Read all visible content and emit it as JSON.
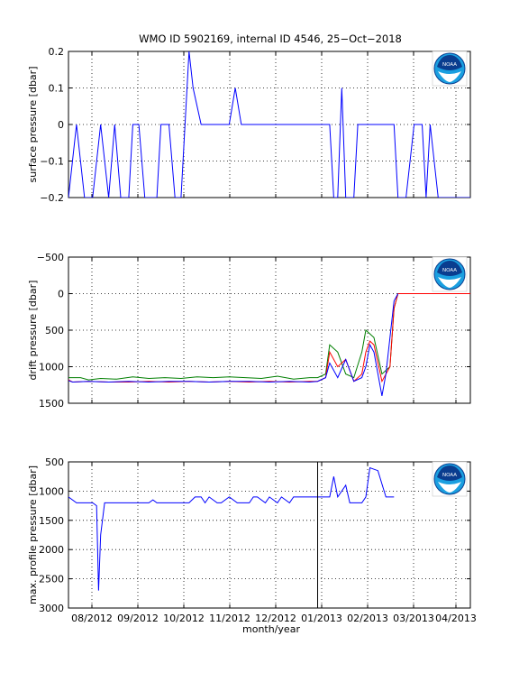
{
  "chart_data": [
    {
      "type": "line",
      "title": "WMO ID 5902169, internal ID 4546, 25−Oct−2018",
      "ylabel": "surface pressure [dbar]",
      "xlabel": "",
      "xlim": [
        0,
        100
      ],
      "ylim": [
        -0.2,
        0.2
      ],
      "yticks": [
        -0.2,
        -0.1,
        0,
        0.1,
        0.2
      ],
      "ytick_labels": [
        "−0.2",
        "−0.1",
        "0",
        "0.1",
        "0.2"
      ],
      "y_reversed": false,
      "grid": true,
      "logo": "noaa-logo",
      "series": [
        {
          "color": "#0000ff",
          "x": [
            0,
            2,
            4,
            6,
            8,
            10,
            11.5,
            13,
            15,
            16,
            17.5,
            19,
            21,
            22,
            23,
            24,
            25,
            26.5,
            28,
            30,
            31,
            33,
            35,
            37,
            38,
            39,
            40,
            41.5,
            43,
            45,
            47,
            48,
            50,
            52,
            53.5,
            55,
            57,
            59,
            61,
            63,
            65,
            66,
            67,
            68,
            69,
            70,
            71,
            72,
            74,
            75,
            76,
            77,
            79,
            81,
            82,
            84,
            86,
            87,
            88,
            89,
            90,
            92,
            94,
            96,
            98,
            100
          ],
          "y": [
            -0.2,
            0,
            -0.2,
            -0.2,
            0,
            -0.2,
            0,
            -0.2,
            -0.2,
            0,
            0,
            -0.2,
            -0.2,
            -0.2,
            0,
            0,
            0,
            -0.2,
            -0.2,
            0.2,
            0.1,
            0,
            0,
            0,
            0,
            0,
            0,
            0.1,
            0,
            0,
            0,
            0,
            0,
            0,
            0,
            0,
            0,
            0,
            0,
            0,
            0,
            -0.2,
            -0.2,
            0.1,
            -0.2,
            -0.2,
            -0.2,
            0,
            0,
            0,
            0,
            0,
            0,
            0,
            -0.2,
            -0.2,
            0,
            0,
            0,
            -0.2,
            0,
            -0.2,
            -0.2,
            -0.2,
            -0.2,
            -0.2
          ]
        }
      ],
      "vline_x": null
    },
    {
      "type": "line",
      "title": "",
      "ylabel": "drift pressure [dbar]",
      "xlabel": "",
      "xlim": [
        0,
        100
      ],
      "ylim": [
        -500,
        1500
      ],
      "yticks": [
        -500,
        0,
        500,
        1000,
        1500
      ],
      "ytick_labels": [
        "−500",
        "0",
        "500",
        "1000",
        "1500"
      ],
      "y_reversed": true,
      "grid": true,
      "logo": "noaa-logo",
      "series": [
        {
          "color": "#007f00",
          "x": [
            0,
            3,
            5,
            8,
            12,
            16,
            20,
            24,
            28,
            32,
            36,
            40,
            44,
            48,
            52,
            56,
            60,
            62,
            64,
            65,
            67,
            69,
            71,
            73,
            74,
            76,
            78,
            80,
            81,
            82,
            83
          ],
          "y": [
            1150,
            1150,
            1180,
            1160,
            1170,
            1140,
            1160,
            1150,
            1160,
            1140,
            1150,
            1140,
            1150,
            1160,
            1130,
            1170,
            1150,
            1150,
            1100,
            700,
            800,
            1100,
            1150,
            800,
            500,
            600,
            1100,
            1000,
            200,
            0,
            0
          ]
        },
        {
          "color": "#ff0000",
          "x": [
            0,
            1,
            5,
            10,
            15,
            20,
            25,
            30,
            35,
            40,
            45,
            50,
            55,
            60,
            62,
            64,
            65,
            67,
            69,
            71,
            73,
            74,
            75,
            76,
            78,
            80,
            81,
            82,
            83,
            86,
            90,
            95,
            100
          ],
          "y": [
            1180,
            1210,
            1200,
            1210,
            1210,
            1200,
            1210,
            1200,
            1210,
            1200,
            1210,
            1200,
            1210,
            1200,
            1200,
            1150,
            800,
            1000,
            900,
            1200,
            1100,
            800,
            650,
            700,
            1200,
            1000,
            200,
            0,
            0,
            0,
            0,
            0,
            0
          ]
        },
        {
          "color": "#0000ff",
          "x": [
            0,
            1,
            5,
            10,
            15,
            20,
            25,
            30,
            35,
            40,
            45,
            50,
            55,
            60,
            62,
            64,
            65,
            67,
            69,
            71,
            73,
            74,
            75,
            76,
            78,
            79,
            80,
            81,
            82
          ],
          "y": [
            1190,
            1210,
            1200,
            1210,
            1200,
            1210,
            1200,
            1200,
            1210,
            1200,
            1200,
            1210,
            1200,
            1210,
            1200,
            1150,
            950,
            1150,
            900,
            1200,
            1150,
            1000,
            700,
            800,
            1400,
            1100,
            600,
            100,
            0
          ]
        }
      ],
      "vline_x": null
    },
    {
      "type": "line",
      "title": "",
      "ylabel": "max. profile pressure [dbar]",
      "xlabel": "month/year",
      "xlim": [
        0,
        100
      ],
      "ylim": [
        500,
        3000
      ],
      "yticks": [
        500,
        1000,
        1500,
        2000,
        2500,
        3000
      ],
      "ytick_labels": [
        "500",
        "1000",
        "1500",
        "2000",
        "2500",
        "3000"
      ],
      "y_reversed": true,
      "grid": true,
      "logo": "noaa-logo",
      "x_tick_labels": [
        "08/2012",
        "09/2012",
        "10/2012",
        "11/2012",
        "12/2012",
        "01/2013",
        "02/2013",
        "03/2013",
        "04/2013"
      ],
      "series": [
        {
          "color": "#0000ff",
          "x": [
            0,
            2,
            6,
            7,
            7.5,
            8,
            9,
            10,
            12,
            14,
            16,
            18,
            20,
            21,
            22,
            24,
            26,
            28,
            30,
            31.5,
            33,
            34,
            35,
            37,
            38,
            40,
            42,
            43.5,
            45,
            46,
            47,
            49,
            50,
            52,
            53,
            55,
            56,
            57,
            59,
            61,
            62,
            64,
            65,
            66,
            67,
            69,
            70,
            72,
            73,
            74,
            75,
            77,
            79,
            81
          ],
          "y": [
            1100,
            1200,
            1200,
            1250,
            2700,
            1750,
            1200,
            1200,
            1200,
            1200,
            1200,
            1200,
            1200,
            1150,
            1200,
            1200,
            1200,
            1200,
            1200,
            1100,
            1100,
            1200,
            1100,
            1200,
            1200,
            1100,
            1200,
            1200,
            1200,
            1100,
            1100,
            1200,
            1100,
            1200,
            1100,
            1200,
            1100,
            1100,
            1100,
            1100,
            1100,
            1100,
            1100,
            750,
            1100,
            900,
            1200,
            1200,
            1200,
            1100,
            600,
            650,
            1100,
            1100
          ]
        }
      ],
      "vline_x": 62
    }
  ]
}
